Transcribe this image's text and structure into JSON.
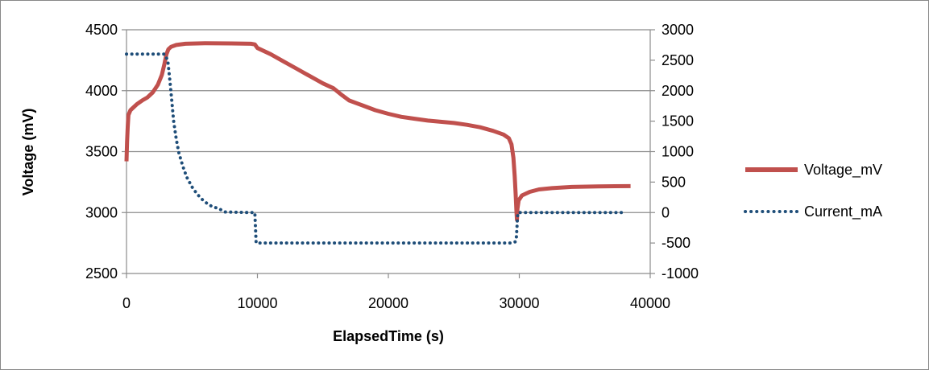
{
  "chart_data": {
    "type": "line",
    "title": "",
    "xlabel": "ElapsedTime (s)",
    "ylabel": "Voltage (mV)",
    "y2label": "",
    "xlim": [
      0,
      40000
    ],
    "ylim": [
      2500,
      4500
    ],
    "y2lim": [
      -1000,
      3000
    ],
    "x_ticks": [
      "0",
      "10000",
      "20000",
      "30000",
      "40000"
    ],
    "y_ticks": [
      "2500",
      "3000",
      "3500",
      "4000",
      "4500"
    ],
    "y2_ticks": [
      "-1000",
      "-500",
      "0",
      "500",
      "1000",
      "1500",
      "2000",
      "2500",
      "3000"
    ],
    "grid": true,
    "legend_position": "right",
    "series": [
      {
        "name": "Voltage_mV",
        "axis": "left",
        "color": "#C0504D",
        "style": "solid",
        "points": [
          [
            0,
            3420
          ],
          [
            40,
            3580
          ],
          [
            90,
            3700
          ],
          [
            150,
            3800
          ],
          [
            300,
            3840
          ],
          [
            500,
            3860
          ],
          [
            800,
            3890
          ],
          [
            1200,
            3920
          ],
          [
            1600,
            3945
          ],
          [
            2000,
            3985
          ],
          [
            2400,
            4050
          ],
          [
            2700,
            4130
          ],
          [
            2900,
            4220
          ],
          [
            3050,
            4300
          ],
          [
            3200,
            4340
          ],
          [
            3400,
            4360
          ],
          [
            3800,
            4375
          ],
          [
            4500,
            4385
          ],
          [
            6000,
            4390
          ],
          [
            8000,
            4388
          ],
          [
            9500,
            4385
          ],
          [
            9800,
            4380
          ],
          [
            10000,
            4350
          ],
          [
            11000,
            4300
          ],
          [
            12000,
            4240
          ],
          [
            13000,
            4180
          ],
          [
            14000,
            4120
          ],
          [
            15000,
            4060
          ],
          [
            15800,
            4020
          ],
          [
            16500,
            3960
          ],
          [
            17000,
            3920
          ],
          [
            18000,
            3880
          ],
          [
            19000,
            3840
          ],
          [
            20000,
            3810
          ],
          [
            21000,
            3785
          ],
          [
            22000,
            3770
          ],
          [
            23000,
            3755
          ],
          [
            24000,
            3745
          ],
          [
            25000,
            3735
          ],
          [
            26000,
            3720
          ],
          [
            27000,
            3700
          ],
          [
            28000,
            3670
          ],
          [
            28800,
            3640
          ],
          [
            29200,
            3610
          ],
          [
            29400,
            3560
          ],
          [
            29550,
            3450
          ],
          [
            29650,
            3300
          ],
          [
            29720,
            3150
          ],
          [
            29780,
            3020
          ],
          [
            29820,
            2940
          ],
          [
            29860,
            3030
          ],
          [
            29950,
            3100
          ],
          [
            30200,
            3140
          ],
          [
            30800,
            3170
          ],
          [
            31500,
            3190
          ],
          [
            32500,
            3200
          ],
          [
            34000,
            3210
          ],
          [
            36000,
            3215
          ],
          [
            38500,
            3217
          ]
        ]
      },
      {
        "name": "Current_mA",
        "axis": "right",
        "color": "#1F4E79",
        "style": "dotted",
        "points": [
          [
            0,
            2600
          ],
          [
            2900,
            2600
          ],
          [
            3150,
            2500
          ],
          [
            3300,
            2200
          ],
          [
            3450,
            1850
          ],
          [
            3600,
            1500
          ],
          [
            3800,
            1200
          ],
          [
            4000,
            980
          ],
          [
            4300,
            760
          ],
          [
            4600,
            580
          ],
          [
            5000,
            420
          ],
          [
            5400,
            300
          ],
          [
            5800,
            210
          ],
          [
            6200,
            140
          ],
          [
            6600,
            90
          ],
          [
            7000,
            70
          ],
          [
            7500,
            10
          ],
          [
            9500,
            0
          ],
          [
            9800,
            0
          ],
          [
            9900,
            -500
          ],
          [
            10000,
            -500
          ],
          [
            15000,
            -500
          ],
          [
            20000,
            -500
          ],
          [
            25000,
            -500
          ],
          [
            29400,
            -500
          ],
          [
            29700,
            -480
          ],
          [
            29780,
            -400
          ],
          [
            29820,
            -250
          ],
          [
            29850,
            -100
          ],
          [
            29900,
            0
          ],
          [
            30500,
            0
          ],
          [
            35000,
            0
          ],
          [
            38000,
            0
          ]
        ]
      }
    ]
  }
}
